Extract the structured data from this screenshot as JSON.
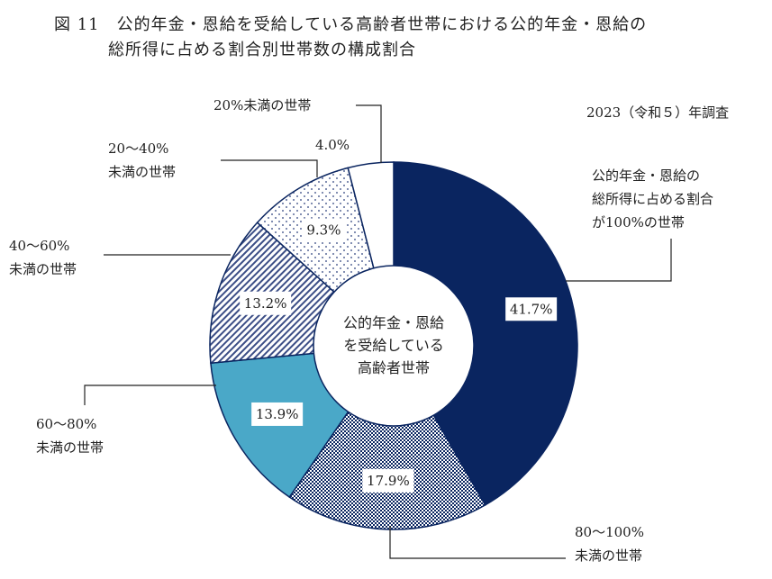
{
  "figure_title_line1": "図 11　公的年金・恩給を受給している高齢者世帯における公的年金・恩給の",
  "figure_title_line2": "総所得に占める割合別世帯数の構成割合",
  "survey_year": "2023（令和５）年調査",
  "center_label": [
    "公的年金・恩給",
    "を受給している",
    "高齢者世帯"
  ],
  "chart_data": {
    "type": "pie",
    "donut": true,
    "title": "公的年金・恩給の総所得に占める割合別世帯数の構成割合",
    "unit": "%",
    "slices": [
      {
        "label": [
          "公的年金・恩給の",
          "総所得に占める割合",
          "が100%の世帯"
        ],
        "value": 41.7,
        "display": "41.7%",
        "color": "#0a2560",
        "pattern": "solid"
      },
      {
        "label": [
          "80〜100%",
          "未満の世帯"
        ],
        "value": 17.9,
        "display": "17.9%",
        "color": "#0a2560",
        "pattern": "checker"
      },
      {
        "label": [
          "60〜80%",
          "未満の世帯"
        ],
        "value": 13.9,
        "display": "13.9%",
        "color": "#4aa8c8",
        "pattern": "solid"
      },
      {
        "label": [
          "40〜60%",
          "未満の世帯"
        ],
        "value": 13.2,
        "display": "13.2%",
        "color": "#0a2560",
        "pattern": "diagonal"
      },
      {
        "label": [
          "20〜40%",
          "未満の世帯"
        ],
        "value": 9.3,
        "display": "9.3%",
        "color": "#0a2560",
        "pattern": "dots"
      },
      {
        "label": [
          "20%未満の世帯"
        ],
        "value": 4.0,
        "display": "4.0%",
        "color": "#ffffff",
        "pattern": "solid"
      }
    ]
  }
}
